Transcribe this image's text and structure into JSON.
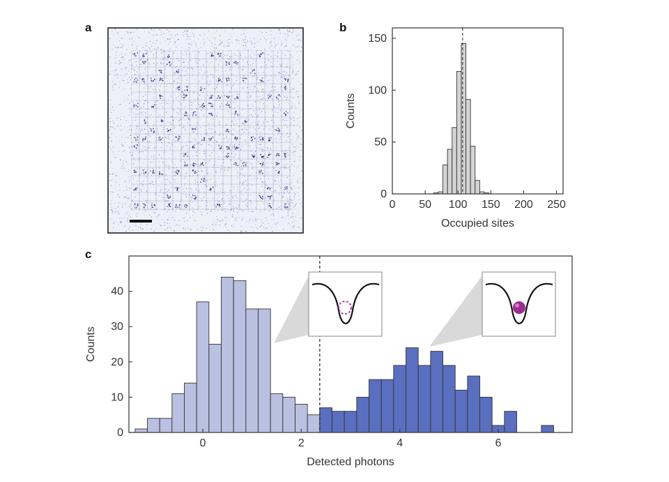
{
  "figure": {
    "panel_labels": {
      "a": "a",
      "b": "b",
      "c": "c"
    },
    "colors": {
      "image_bg": "#eef0f8",
      "image_dot": "#3a3a9a",
      "bar_grey": "#d4d4d4",
      "bar_light": "#b9c0e0",
      "bar_dark": "#5a6fbf",
      "outline": "#333333",
      "atom": "#9b2d8f",
      "inset_bg": "#ffffff",
      "callout": "#d9d9d9"
    }
  },
  "chart_data": [
    {
      "id": "b",
      "type": "bar",
      "xlabel": "Occupied sites",
      "ylabel": "Counts",
      "xlim": [
        0,
        260
      ],
      "ylim": [
        0,
        160
      ],
      "xticks": [
        0,
        50,
        100,
        150,
        200,
        250
      ],
      "yticks": [
        0,
        50,
        100,
        150
      ],
      "bin_width": 7,
      "bin_starts": [
        63,
        70,
        77,
        84,
        91,
        98,
        105,
        112,
        119,
        126,
        133,
        140
      ],
      "values": [
        1,
        2,
        28,
        43,
        64,
        118,
        145,
        91,
        46,
        13,
        2,
        1
      ],
      "mean_line_x": 107
    },
    {
      "id": "c",
      "type": "bar",
      "xlabel": "Detected photons",
      "ylabel": "Counts",
      "xlim": [
        -1.5,
        7.5
      ],
      "ylim": [
        0,
        50
      ],
      "xticks": [
        0,
        2,
        4,
        6
      ],
      "yticks": [
        0,
        10,
        20,
        30,
        40
      ],
      "bin_width": 0.25,
      "threshold_x": 2.375,
      "series": [
        {
          "name": "empty site",
          "bin_starts": [
            -1.375,
            -1.125,
            -0.875,
            -0.625,
            -0.375,
            -0.125,
            0.125,
            0.375,
            0.625,
            0.875,
            1.125,
            1.375,
            1.625,
            1.875,
            2.125
          ],
          "values": [
            1,
            4,
            4,
            11,
            14,
            37,
            25,
            44,
            43,
            35,
            35,
            11,
            10,
            8,
            5
          ]
        },
        {
          "name": "occupied site",
          "bin_starts": [
            2.375,
            2.625,
            2.875,
            3.125,
            3.375,
            3.625,
            3.875,
            4.125,
            4.375,
            4.625,
            4.875,
            5.125,
            5.375,
            5.625,
            5.875,
            6.125,
            6.375,
            6.625,
            6.875
          ],
          "values": [
            7,
            6,
            6,
            10,
            15,
            15,
            19,
            24,
            19,
            23,
            19,
            12,
            16,
            10,
            2,
            6,
            0,
            0,
            2
          ]
        }
      ]
    }
  ]
}
